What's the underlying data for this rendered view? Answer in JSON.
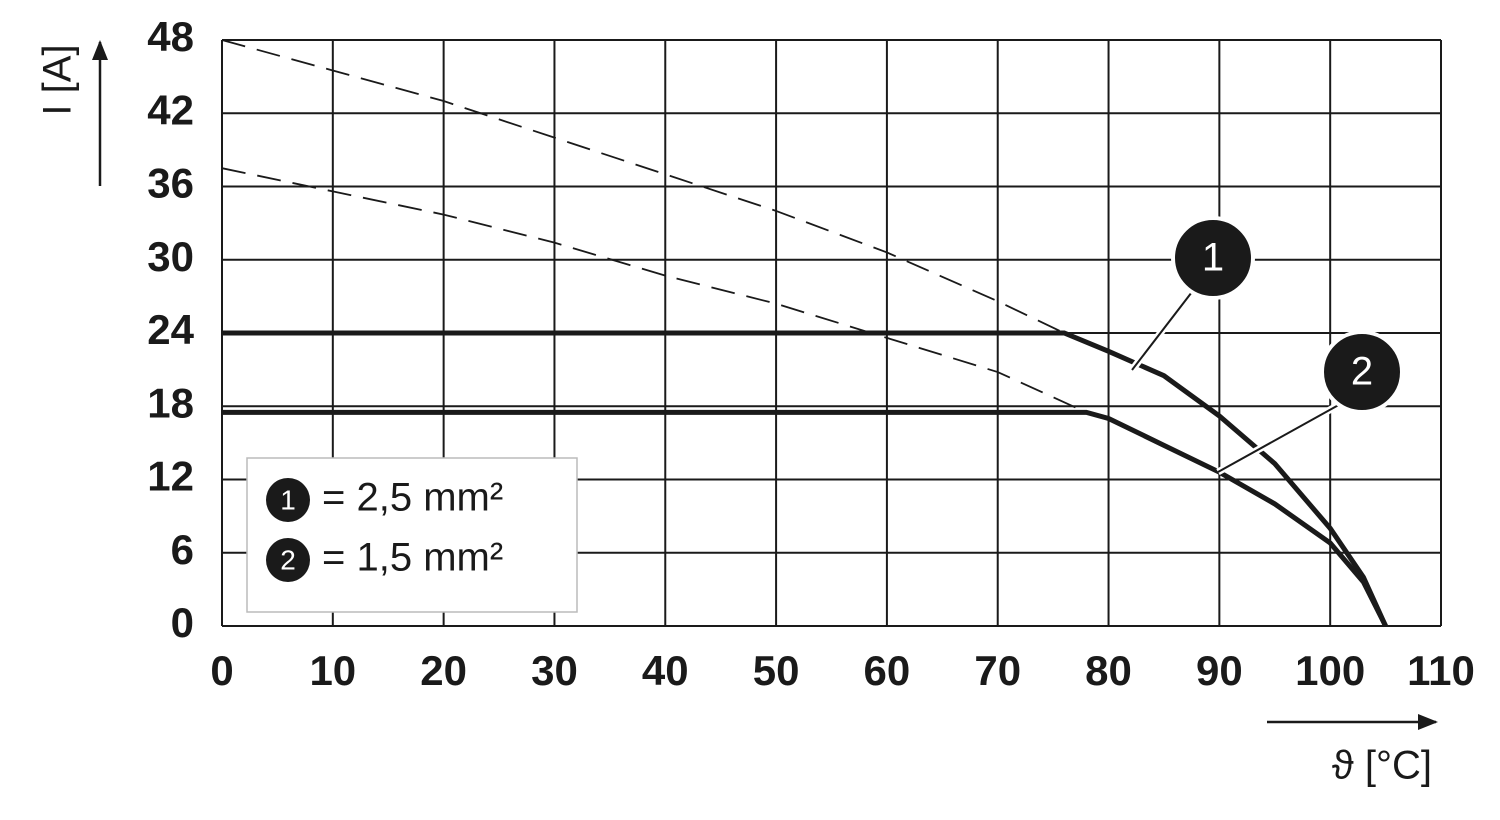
{
  "chart_data": {
    "type": "line",
    "xlabel": "ϑ [°C]",
    "ylabel": "I [A]",
    "xlim": [
      0,
      110
    ],
    "xticks": [
      0,
      10,
      20,
      30,
      40,
      50,
      60,
      70,
      80,
      90,
      100,
      110
    ],
    "ylim": [
      0,
      48
    ],
    "yticks": [
      0,
      6,
      12,
      18,
      24,
      30,
      36,
      42,
      48
    ],
    "grid": true,
    "legend": "lower left",
    "series": [
      {
        "name": "= 2,5 mm²",
        "marker": "1",
        "color": "#1a1a1a",
        "style": "solid",
        "x": [
          0,
          76,
          80,
          85,
          90,
          95,
          100,
          103,
          105
        ],
        "values": [
          24,
          24,
          22.5,
          20.5,
          17.2,
          13.3,
          8,
          4,
          0
        ]
      },
      {
        "name": "= 1,5 mm²",
        "marker": "2",
        "color": "#1a1a1a",
        "style": "solid",
        "x": [
          0,
          78,
          80,
          85,
          90,
          95,
          100,
          103,
          105
        ],
        "values": [
          17.5,
          17.5,
          17,
          14.8,
          12.6,
          10,
          6.8,
          3.6,
          0
        ]
      },
      {
        "color": "#1a1a1a",
        "style": "dashed",
        "x": [
          0,
          10,
          20,
          30,
          40,
          50,
          60,
          70,
          76
        ],
        "values": [
          48,
          45.5,
          43,
          40,
          37,
          34,
          30.6,
          26.6,
          24
        ]
      },
      {
        "color": "#1a1a1a",
        "style": "dashed",
        "x": [
          0,
          10,
          20,
          30,
          40,
          50,
          60,
          70,
          78
        ],
        "values": [
          37.5,
          35.6,
          33.7,
          31.4,
          28.7,
          26.4,
          23.6,
          20.8,
          17.5
        ]
      }
    ]
  }
}
